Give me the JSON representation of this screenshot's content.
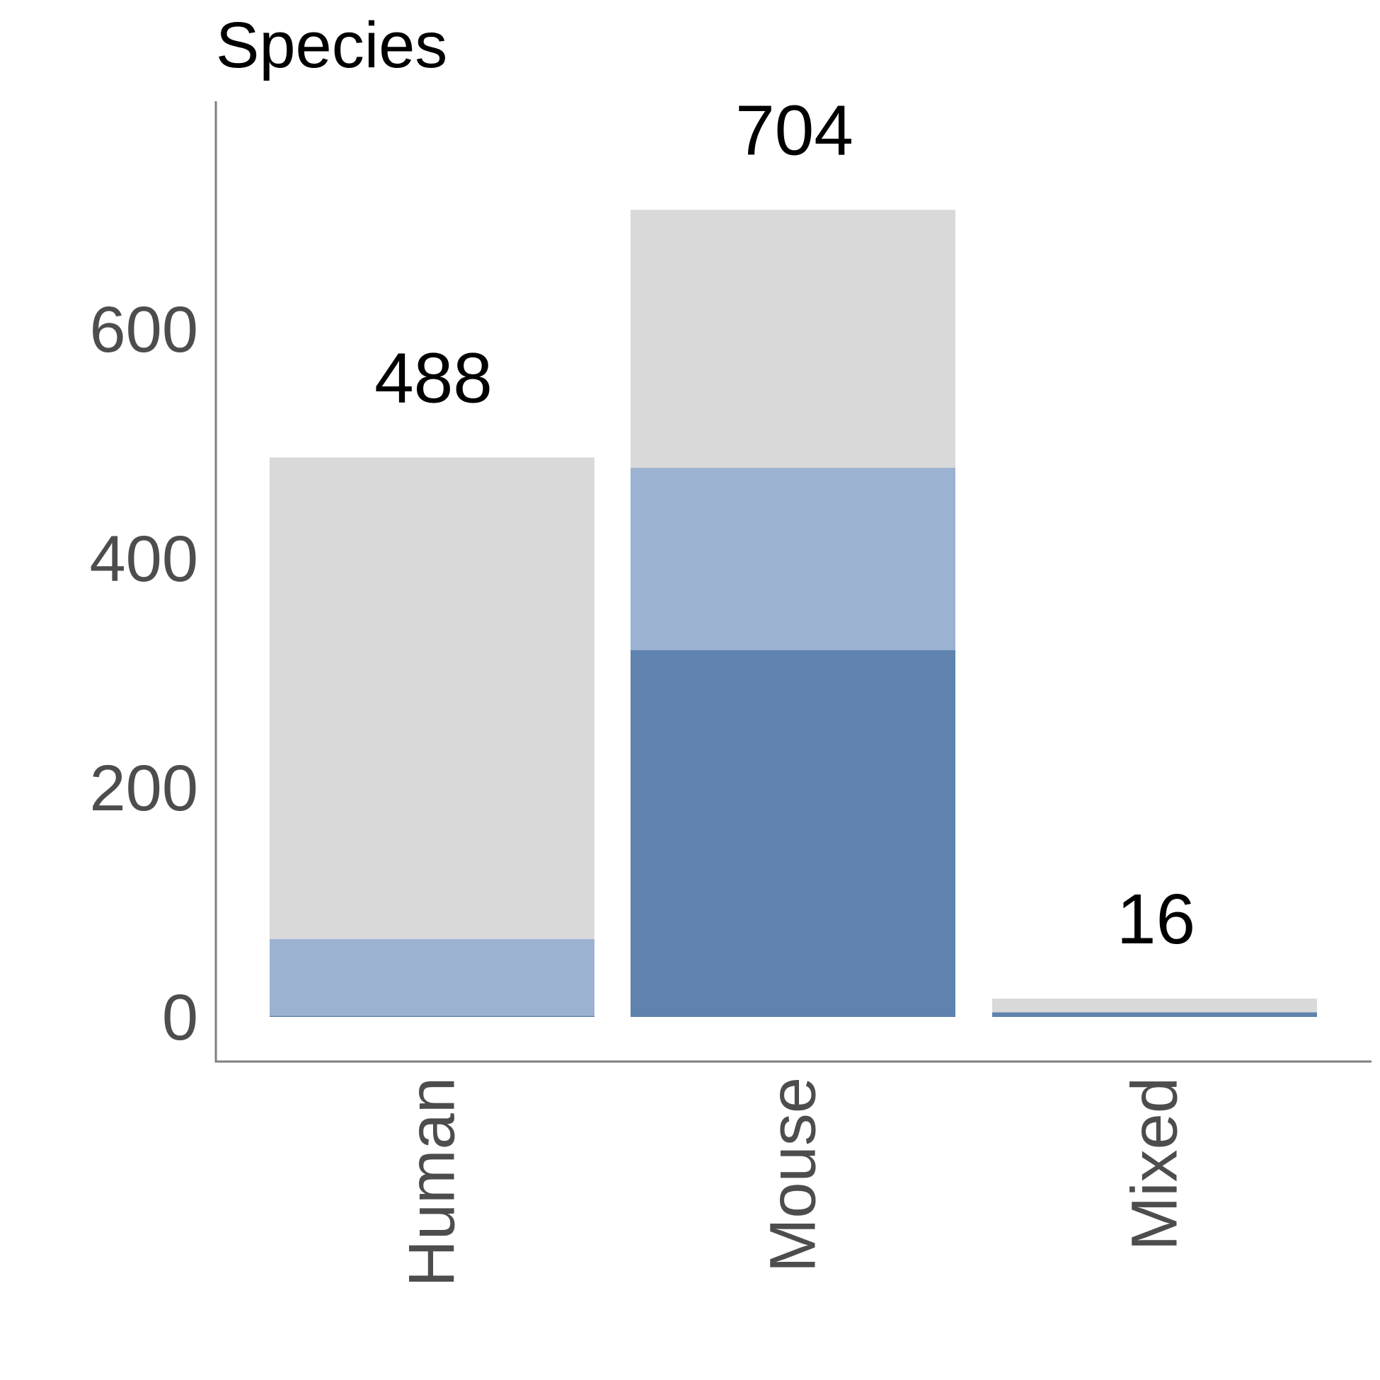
{
  "chart_data": {
    "type": "bar",
    "stacked": true,
    "title": "Species",
    "xlabel": "",
    "ylabel": "",
    "categories": [
      "Human",
      "Mouse",
      "Mixed"
    ],
    "totals": [
      488,
      704,
      16
    ],
    "total_labels": [
      "488",
      "704",
      "16"
    ],
    "series": [
      {
        "values": [
          1,
          320,
          4
        ],
        "color": "#5f82af"
      },
      {
        "values": [
          67,
          159,
          0
        ],
        "color": "#9bb2d1"
      },
      {
        "values": [
          420,
          225,
          12
        ],
        "color": "#d9d9d9"
      }
    ],
    "ylim": [
      0,
      840
    ],
    "yticks": [
      0,
      200,
      400,
      600
    ],
    "ytick_labels": [
      "0",
      "200",
      "400",
      "600"
    ],
    "grid": false,
    "legend": "none"
  }
}
